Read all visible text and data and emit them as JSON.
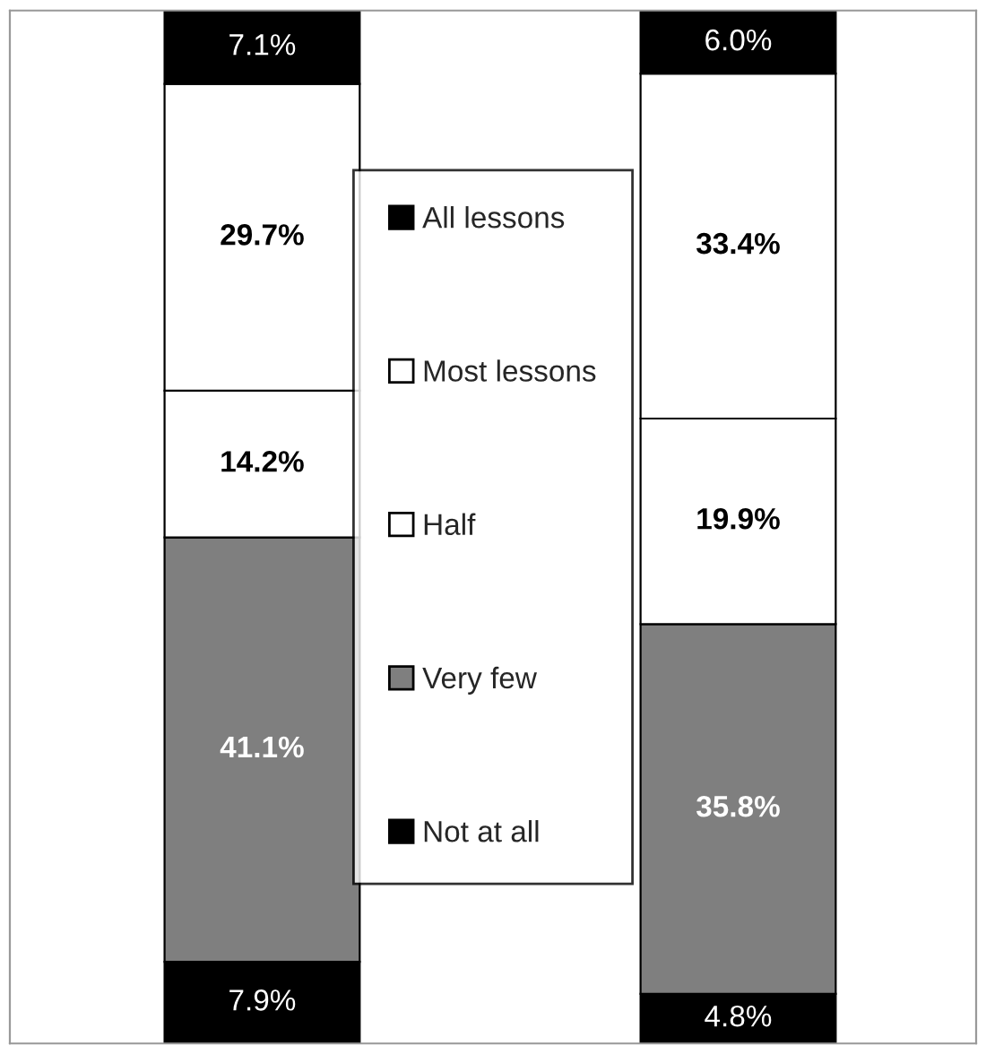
{
  "chart_data": {
    "type": "bar",
    "stacked": true,
    "categories": [
      null,
      null
    ],
    "series": [
      {
        "name": "Not at all",
        "color": "#000000",
        "values": [
          7.9,
          4.8
        ],
        "value_labels": [
          "7.9%",
          "4.8%"
        ]
      },
      {
        "name": "Very few",
        "color": "#7f7f7f",
        "values": [
          41.1,
          35.8
        ],
        "value_labels": [
          "41.1%",
          "35.8%"
        ]
      },
      {
        "name": "Half",
        "color": "#ffffff",
        "values": [
          14.2,
          19.9
        ],
        "value_labels": [
          "14.2%",
          "19.9%"
        ]
      },
      {
        "name": "Most lessons",
        "color": "#ffffff",
        "values": [
          29.7,
          33.4
        ],
        "value_labels": [
          "29.7%",
          "33.4%"
        ]
      },
      {
        "name": "All lessons",
        "color": "#000000",
        "values": [
          7.1,
          6.0
        ],
        "value_labels": [
          "7.1%",
          "6.0%"
        ]
      }
    ],
    "legend": "center",
    "grid": false,
    "tick_labels": false
  }
}
